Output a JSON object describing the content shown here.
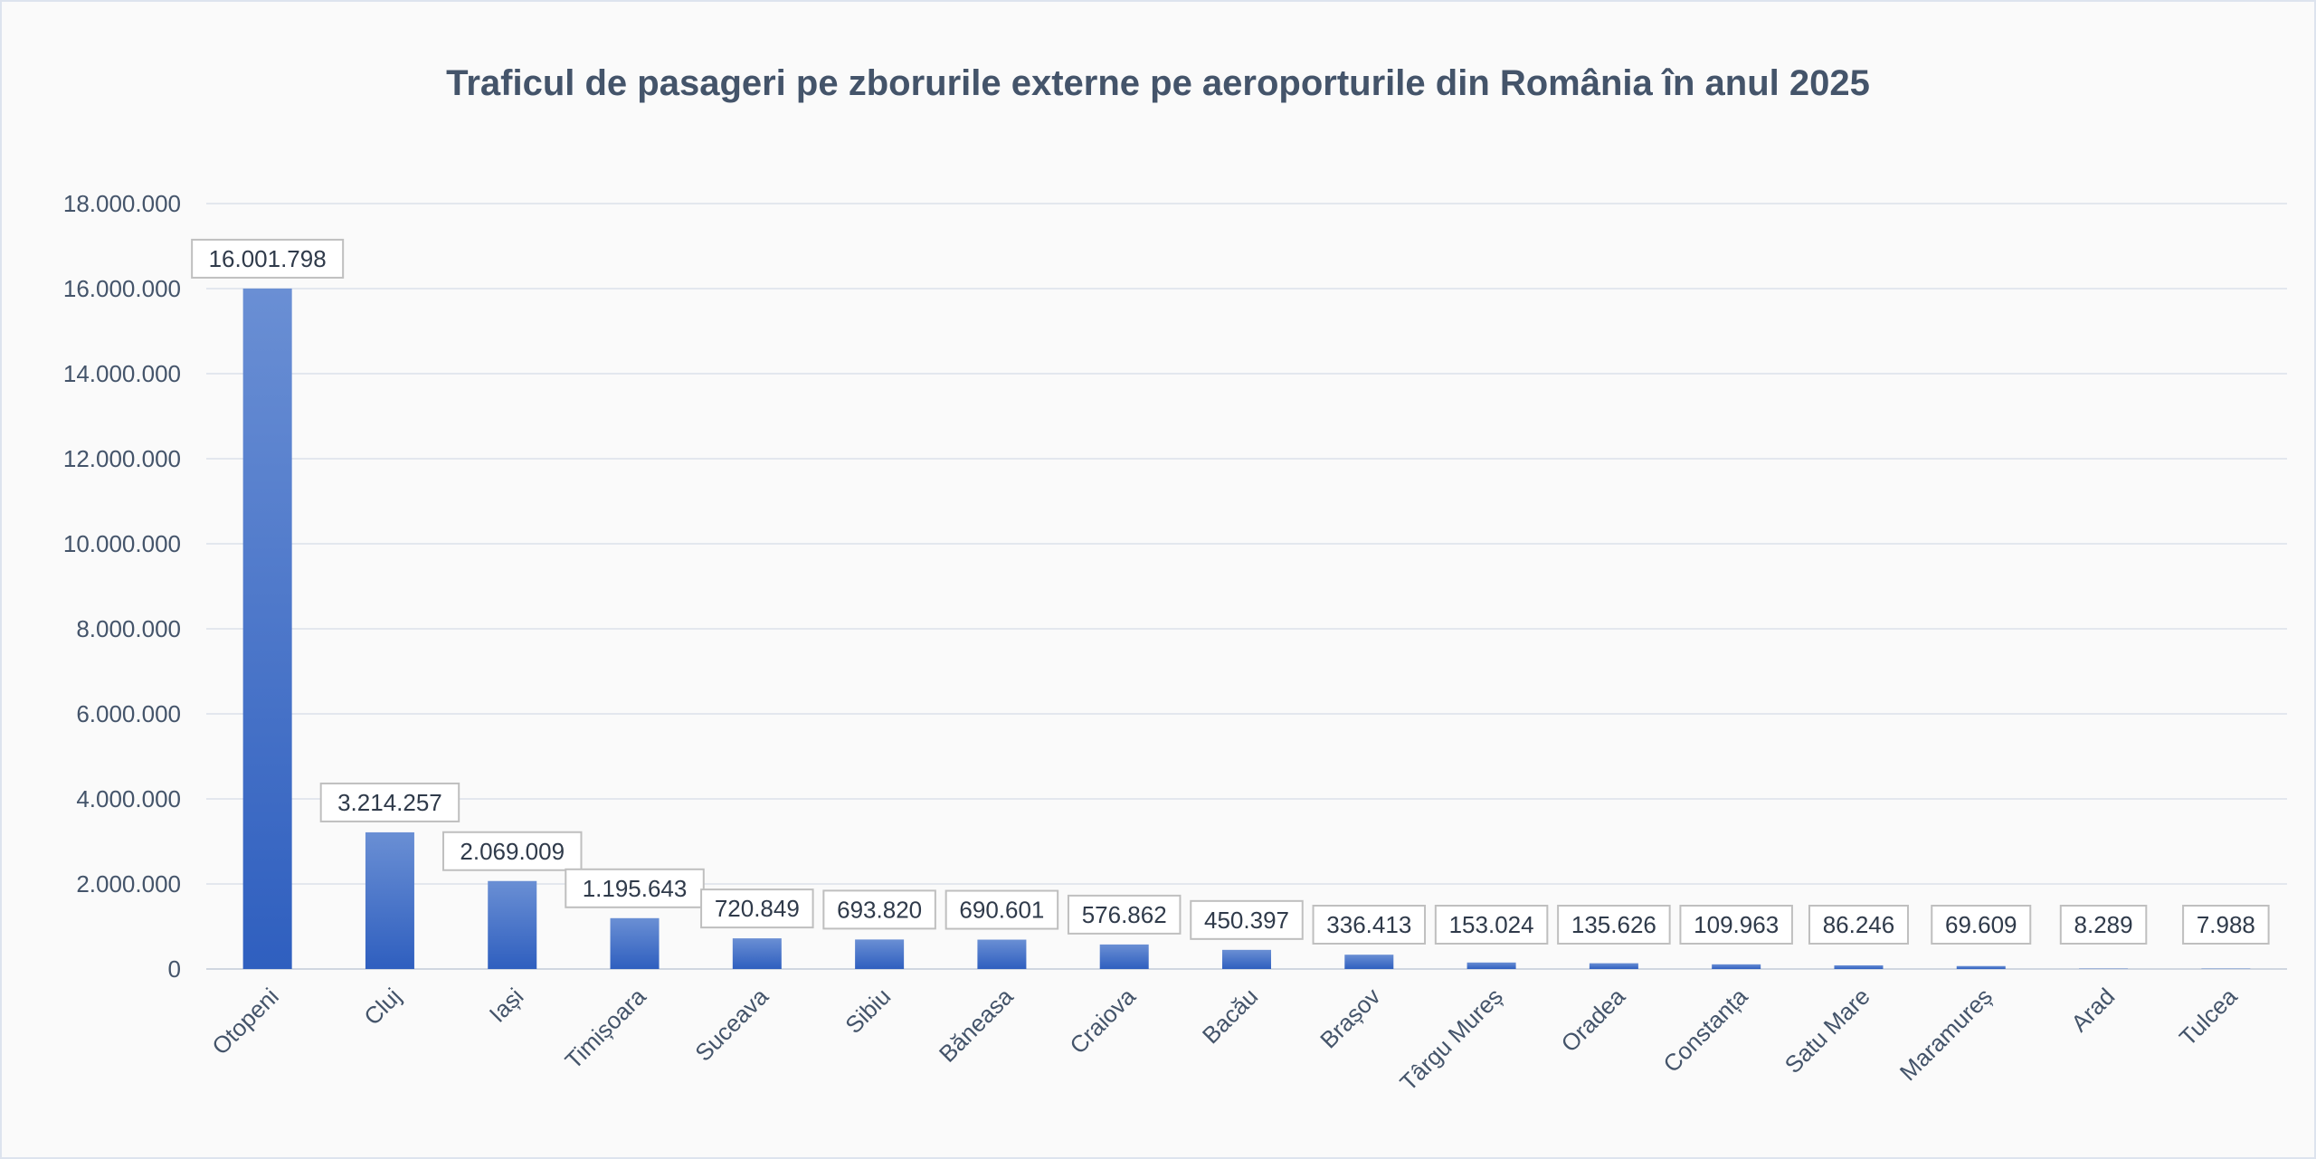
{
  "chart_data": {
    "type": "bar",
    "title": "Traficul de pasageri pe zborurile externe pe aeroporturile din România în anul 2025",
    "xlabel": "",
    "ylabel": "",
    "ylim": [
      0,
      18000000
    ],
    "yticks": [
      0,
      2000000,
      4000000,
      6000000,
      8000000,
      10000000,
      12000000,
      14000000,
      16000000,
      18000000
    ],
    "ytick_labels": [
      "0",
      "2.000.000",
      "4.000.000",
      "6.000.000",
      "8.000.000",
      "10.000.000",
      "12.000.000",
      "14.000.000",
      "16.000.000",
      "18.000.000"
    ],
    "grid": true,
    "legend": "none",
    "bar_color": "#4472c4",
    "categories": [
      "Otopeni",
      "Cluj",
      "Iași",
      "Timișoara",
      "Suceava",
      "Sibiu",
      "Băneasa",
      "Craiova",
      "Bacău",
      "Brașov",
      "Târgu Mureș",
      "Oradea",
      "Constanța",
      "Satu Mare",
      "Maramureș",
      "Arad",
      "Tulcea"
    ],
    "values": [
      16001798,
      3214257,
      2069009,
      1195643,
      720849,
      693820,
      690601,
      576862,
      450397,
      336413,
      153024,
      135626,
      109963,
      86246,
      69609,
      8289,
      7988
    ],
    "data_labels": [
      "16.001.798",
      "3.214.257",
      "2.069.009",
      "1.195.643",
      "720.849",
      "693.820",
      "690.601",
      "576.862",
      "450.397",
      "336.413",
      "153.024",
      "135.626",
      "109.963",
      "86.246",
      "69.609",
      "8.289",
      "7.988"
    ]
  }
}
